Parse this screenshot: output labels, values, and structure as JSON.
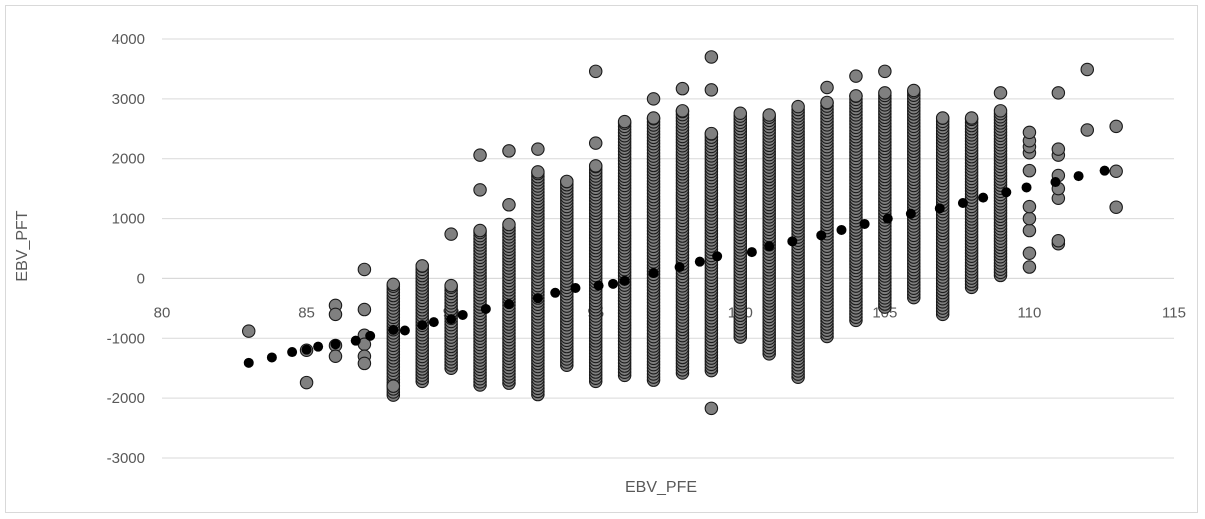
{
  "chart_data": {
    "type": "scatter",
    "title": "",
    "xlabel": "EBV_PFE",
    "ylabel": "EBV_PFT",
    "xlim": [
      80,
      115
    ],
    "ylim": [
      -3000,
      4000
    ],
    "x_ticks": [
      80,
      85,
      90,
      95,
      100,
      105,
      110,
      115
    ],
    "y_ticks": [
      -3000,
      -2000,
      -1000,
      0,
      1000,
      2000,
      3000,
      4000
    ],
    "x_tick_labels": [
      "80",
      "85",
      "90",
      "95",
      "100",
      "105",
      "110",
      "115"
    ],
    "y_tick_labels": [
      "-3000",
      "-2000",
      "-1000",
      "0",
      "1000",
      "2000",
      "3000",
      "4000"
    ],
    "grid": "horizontal",
    "legend": "none",
    "colors": {
      "observed": "#808080",
      "observed_edge": "#1a1a1a",
      "trend": "#000000",
      "grid": "#d9d9d9",
      "text": "#595959"
    },
    "series": [
      {
        "marker": "grey-circle",
        "columns": [
          {
            "x": 83,
            "y": [
              -880
            ]
          },
          {
            "x": 85,
            "y": [
              -1200,
              -1740
            ]
          },
          {
            "x": 86,
            "y": [
              -450,
              -600,
              -1120,
              -1300
            ]
          },
          {
            "x": 87,
            "y": [
              150,
              -520,
              -950,
              -1100,
              -1300,
              -1420
            ]
          },
          {
            "x": 88,
            "min": -1950,
            "max": -100,
            "extra": [
              -1800
            ]
          },
          {
            "x": 89,
            "min": -1720,
            "max": 210
          },
          {
            "x": 90,
            "min": -1500,
            "max": -120,
            "extra": [
              740
            ]
          },
          {
            "x": 91,
            "min": -1780,
            "max": 800,
            "extra": [
              1480,
              2060
            ]
          },
          {
            "x": 92,
            "min": -1750,
            "max": 900,
            "extra": [
              1230,
              2130
            ]
          },
          {
            "x": 93,
            "min": -1940,
            "max": 1780,
            "extra": [
              2160
            ]
          },
          {
            "x": 94,
            "min": -1450,
            "max": 1620
          },
          {
            "x": 95,
            "min": -1720,
            "max": 1880,
            "extra": [
              2260,
              3460
            ]
          },
          {
            "x": 96,
            "min": -1620,
            "max": 2620
          },
          {
            "x": 97,
            "min": -1700,
            "max": 2680,
            "extra": [
              3000
            ]
          },
          {
            "x": 98,
            "min": -1580,
            "max": 2800,
            "extra": [
              3170
            ]
          },
          {
            "x": 99,
            "min": -1540,
            "max": 2420,
            "extra": [
              -2170,
              3150,
              3700
            ]
          },
          {
            "x": 100,
            "min": -980,
            "max": 2760
          },
          {
            "x": 101,
            "min": -1260,
            "max": 2730
          },
          {
            "x": 102,
            "min": -1650,
            "max": 2870
          },
          {
            "x": 103,
            "min": -970,
            "max": 2940,
            "extra": [
              3190
            ]
          },
          {
            "x": 104,
            "min": -700,
            "max": 3050,
            "extra": [
              3380
            ]
          },
          {
            "x": 105,
            "min": -480,
            "max": 3100,
            "extra": [
              3460
            ]
          },
          {
            "x": 106,
            "min": -320,
            "max": 3140
          },
          {
            "x": 107,
            "min": -600,
            "max": 2680
          },
          {
            "x": 108,
            "min": -150,
            "max": 2680
          },
          {
            "x": 109,
            "min": 50,
            "max": 2800,
            "extra": [
              3100
            ]
          },
          {
            "x": 110,
            "y": [
              190,
              420,
              800,
              1000,
              1200,
              1800,
              2100,
              2200,
              2300,
              2440
            ]
          },
          {
            "x": 111,
            "y": [
              580,
              630,
              1340,
              1500,
              1720,
              2060,
              2160,
              3100
            ]
          },
          {
            "x": 112,
            "y": [
              2480,
              3490
            ]
          },
          {
            "x": 113,
            "y": [
              1190,
              1790,
              2540
            ]
          }
        ]
      },
      {
        "marker": "black-dot",
        "points": [
          [
            83.0,
            -1410
          ],
          [
            83.8,
            -1320
          ],
          [
            84.5,
            -1230
          ],
          [
            85.0,
            -1190
          ],
          [
            85.4,
            -1140
          ],
          [
            86.0,
            -1100
          ],
          [
            86.7,
            -1040
          ],
          [
            87.2,
            -960
          ],
          [
            88.0,
            -860
          ],
          [
            88.4,
            -870
          ],
          [
            89.0,
            -780
          ],
          [
            89.4,
            -730
          ],
          [
            90.0,
            -680
          ],
          [
            90.4,
            -610
          ],
          [
            91.2,
            -510
          ],
          [
            92.0,
            -430
          ],
          [
            93.0,
            -330
          ],
          [
            93.6,
            -240
          ],
          [
            94.3,
            -160
          ],
          [
            95.1,
            -120
          ],
          [
            95.6,
            -90
          ],
          [
            96.0,
            -40
          ],
          [
            97.0,
            90
          ],
          [
            97.9,
            190
          ],
          [
            98.6,
            280
          ],
          [
            99.2,
            370
          ],
          [
            100.4,
            440
          ],
          [
            101.0,
            540
          ],
          [
            101.8,
            620
          ],
          [
            102.8,
            720
          ],
          [
            103.5,
            810
          ],
          [
            104.3,
            910
          ],
          [
            105.1,
            1000
          ],
          [
            105.9,
            1080
          ],
          [
            106.9,
            1170
          ],
          [
            107.7,
            1260
          ],
          [
            108.4,
            1350
          ],
          [
            109.2,
            1440
          ],
          [
            109.9,
            1520
          ],
          [
            110.9,
            1610
          ],
          [
            111.7,
            1710
          ],
          [
            112.6,
            1800
          ]
        ]
      }
    ]
  }
}
